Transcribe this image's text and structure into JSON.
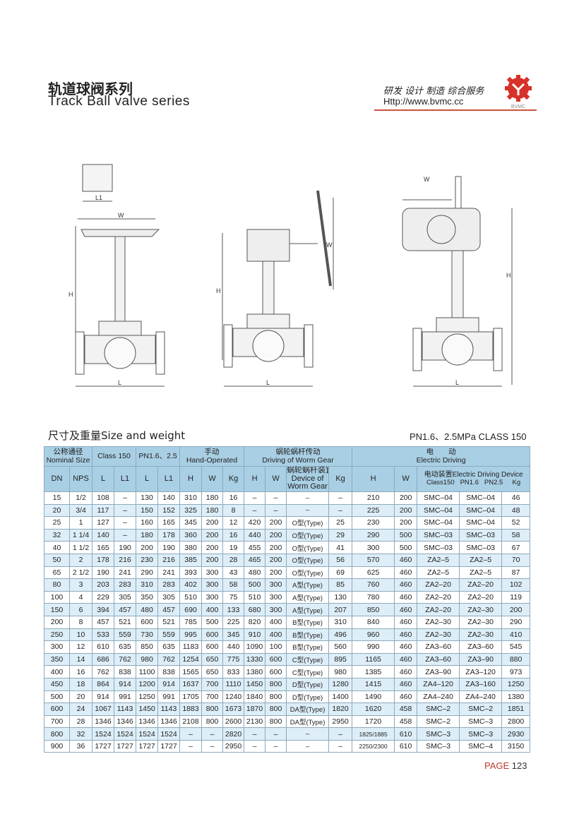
{
  "header": {
    "title_cn": "轨道球阀系列",
    "title_en": "Track Ball valve series",
    "slogan": "研发 设计 制造 综合服务",
    "url": "Http://www.bvmc.cc",
    "logo_text": "BVMC",
    "accent": "#c9533f"
  },
  "drawings": {
    "labels": {
      "l1": "L1",
      "w": "W",
      "h": "H",
      "l": "L"
    }
  },
  "section": {
    "title": "尺寸及重量Size and weight",
    "pressure": "PN1.6、2.5MPa   CLASS 150"
  },
  "table": {
    "groups": {
      "nominal_cn": "公称通径",
      "nominal_en": "Nominal Size",
      "class150": "Class 150",
      "pn": "PN1.6、2.5",
      "hand_cn": "手动",
      "hand_en": "Hand-Operated",
      "worm_cn": "蜗轮蜗杆传动",
      "worm_en": "Driving of Worm Gear",
      "elec_cn": "电　　动",
      "elec_en": "Electric Driving"
    },
    "columns": {
      "dn": "DN",
      "nps": "NPS",
      "l": "L",
      "l1": "L1",
      "h": "H",
      "w": "W",
      "kg": "Kg",
      "worm_device_cn": "蜗轮蜗杆装置",
      "worm_device_en": "Device of Worm Gear",
      "elec_device": "电动装置Electric Driving Device",
      "elec_sub": "Class150   PN1.6   PN2.5     Kg"
    },
    "rows": [
      [
        "15",
        "1/2",
        "108",
        "–",
        "130",
        "140",
        "310",
        "180",
        "16",
        "–",
        "–",
        "–",
        "–",
        "210",
        "200",
        "SMC–04",
        "SMC–04",
        "46"
      ],
      [
        "20",
        "3/4",
        "117",
        "–",
        "150",
        "152",
        "325",
        "180",
        "8",
        "–",
        "–",
        "–",
        "–",
        "225",
        "200",
        "SMC–04",
        "SMC–04",
        "48"
      ],
      [
        "25",
        "1",
        "127",
        "–",
        "160",
        "165",
        "345",
        "200",
        "12",
        "420",
        "200",
        "O型(Type)",
        "25",
        "230",
        "200",
        "SMC–04",
        "SMC–04",
        "52"
      ],
      [
        "32",
        "1 1/4",
        "140",
        "–",
        "180",
        "178",
        "360",
        "200",
        "16",
        "440",
        "200",
        "O型(Type)",
        "29",
        "290",
        "500",
        "SMC–03",
        "SMC–03",
        "58"
      ],
      [
        "40",
        "1 1/2",
        "165",
        "190",
        "200",
        "190",
        "380",
        "200",
        "19",
        "455",
        "200",
        "O型(Type)",
        "41",
        "300",
        "500",
        "SMC–03",
        "SMC–03",
        "67"
      ],
      [
        "50",
        "2",
        "178",
        "216",
        "230",
        "216",
        "385",
        "200",
        "28",
        "465",
        "200",
        "O型(Type)",
        "56",
        "570",
        "460",
        "ZA2–5",
        "ZA2–5",
        "70"
      ],
      [
        "65",
        "2 1/2",
        "190",
        "241",
        "290",
        "241",
        "393",
        "300",
        "43",
        "480",
        "200",
        "O型(Type)",
        "69",
        "625",
        "460",
        "ZA2–5",
        "ZA2–5",
        "87"
      ],
      [
        "80",
        "3",
        "203",
        "283",
        "310",
        "283",
        "402",
        "300",
        "58",
        "500",
        "300",
        "A型(Type)",
        "85",
        "760",
        "460",
        "ZA2–20",
        "ZA2–20",
        "102"
      ],
      [
        "100",
        "4",
        "229",
        "305",
        "350",
        "305",
        "510",
        "300",
        "75",
        "510",
        "300",
        "A型(Type)",
        "130",
        "780",
        "460",
        "ZA2–20",
        "ZA2–20",
        "119"
      ],
      [
        "150",
        "6",
        "394",
        "457",
        "480",
        "457",
        "690",
        "400",
        "133",
        "680",
        "300",
        "A型(Type)",
        "207",
        "850",
        "460",
        "ZA2–20",
        "ZA2–30",
        "200"
      ],
      [
        "200",
        "8",
        "457",
        "521",
        "600",
        "521",
        "785",
        "500",
        "225",
        "820",
        "400",
        "B型(Type)",
        "310",
        "840",
        "460",
        "ZA2–30",
        "ZA2–30",
        "290"
      ],
      [
        "250",
        "10",
        "533",
        "559",
        "730",
        "559",
        "995",
        "600",
        "345",
        "910",
        "400",
        "B型(Type)",
        "496",
        "960",
        "460",
        "ZA2–30",
        "ZA2–30",
        "410"
      ],
      [
        "300",
        "12",
        "610",
        "635",
        "850",
        "635",
        "1183",
        "600",
        "440",
        "1090",
        "100",
        "B型(Type)",
        "560",
        "990",
        "460",
        "ZA3–60",
        "ZA3–60",
        "545"
      ],
      [
        "350",
        "14",
        "686",
        "762",
        "980",
        "762",
        "1254",
        "650",
        "775",
        "1330",
        "600",
        "C型(Type)",
        "895",
        "1165",
        "460",
        "ZA3–60",
        "ZA3–90",
        "880"
      ],
      [
        "400",
        "16",
        "762",
        "838",
        "1100",
        "838",
        "1565",
        "650",
        "833",
        "1380",
        "600",
        "C型(Type)",
        "980",
        "1385",
        "460",
        "ZA3–90",
        "ZA3–120",
        "973"
      ],
      [
        "450",
        "18",
        "864",
        "914",
        "1200",
        "914",
        "1637",
        "700",
        "1110",
        "1450",
        "800",
        "D型(Type)",
        "1280",
        "1415",
        "460",
        "ZA4–120",
        "ZA3–160",
        "1250"
      ],
      [
        "500",
        "20",
        "914",
        "991",
        "1250",
        "991",
        "1705",
        "700",
        "1240",
        "1840",
        "800",
        "D型(Type)",
        "1400",
        "1490",
        "460",
        "ZA4–240",
        "ZA4–240",
        "1380"
      ],
      [
        "600",
        "24",
        "1067",
        "1143",
        "1450",
        "1143",
        "1883",
        "800",
        "1673",
        "1870",
        "800",
        "DA型(Type)",
        "1820",
        "1620",
        "458",
        "SMC–2",
        "SMC–2",
        "1851"
      ],
      [
        "700",
        "28",
        "1346",
        "1346",
        "1346",
        "1346",
        "2108",
        "800",
        "2600",
        "2130",
        "800",
        "DA型(Type)",
        "2950",
        "1720",
        "458",
        "SMC–2",
        "SMC–3",
        "2800"
      ],
      [
        "800",
        "32",
        "1524",
        "1524",
        "1524",
        "1524",
        "–",
        "–",
        "2820",
        "–",
        "–",
        "–",
        "–",
        "1825/1885",
        "610",
        "SMC–3",
        "SMC–3",
        "2930"
      ],
      [
        "900",
        "36",
        "1727",
        "1727",
        "1727",
        "1727",
        "–",
        "–",
        "2950",
        "–",
        "–",
        "–",
        "–",
        "2250/2300",
        "610",
        "SMC–3",
        "SMC–4",
        "3150"
      ]
    ]
  },
  "footer": {
    "page_label": "PAGE",
    "page_number": "123"
  }
}
